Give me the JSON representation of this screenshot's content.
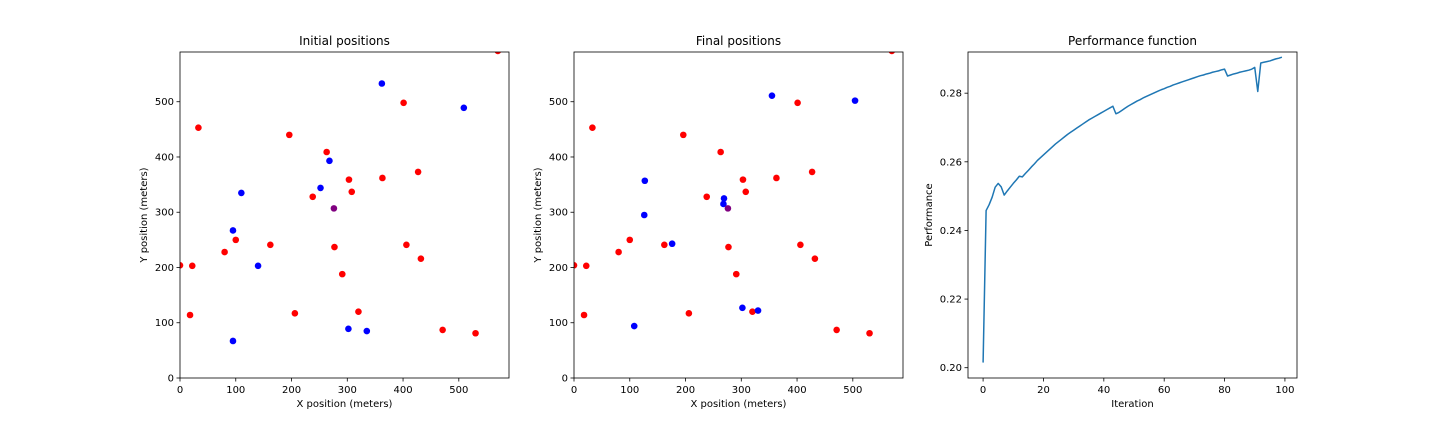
{
  "chart_data": [
    {
      "type": "scatter",
      "title": "Initial positions",
      "xlabel": "X position (meters)",
      "ylabel": "Y position (meters)",
      "xlim": [
        0,
        590
      ],
      "ylim": [
        0,
        590
      ],
      "xticks": [
        0,
        100,
        200,
        300,
        400,
        500
      ],
      "yticks": [
        0,
        100,
        200,
        300,
        400,
        500
      ],
      "grid": false,
      "colors": {
        "red": "#ff0000",
        "blue": "#0000ff",
        "purple": "#800080"
      },
      "series": [
        {
          "color": "red",
          "points": [
            [
              0,
              204
            ],
            [
              22,
              203
            ],
            [
              18,
              114
            ],
            [
              33,
              453
            ],
            [
              80,
              228
            ],
            [
              100,
              250
            ],
            [
              162,
              241
            ],
            [
              196,
              440
            ],
            [
              206,
              117
            ],
            [
              238,
              328
            ],
            [
              263,
              409
            ],
            [
              277,
              237
            ],
            [
              291,
              188
            ],
            [
              303,
              359
            ],
            [
              308,
              337
            ],
            [
              320,
              120
            ],
            [
              363,
              362
            ],
            [
              401,
              498
            ],
            [
              406,
              241
            ],
            [
              427,
              373
            ],
            [
              432,
              216
            ],
            [
              471,
              87
            ],
            [
              530,
              81
            ],
            [
              570,
              592
            ]
          ]
        },
        {
          "color": "blue",
          "points": [
            [
              95,
              267
            ],
            [
              110,
              335
            ],
            [
              95,
              67
            ],
            [
              140,
              203
            ],
            [
              252,
              344
            ],
            [
              268,
              393
            ],
            [
              302,
              89
            ],
            [
              335,
              85
            ],
            [
              362,
              533
            ],
            [
              509,
              489
            ]
          ]
        },
        {
          "color": "purple",
          "points": [
            [
              276,
              307
            ]
          ]
        }
      ]
    },
    {
      "type": "scatter",
      "title": "Final positions",
      "xlabel": "X position (meters)",
      "ylabel": "Y position (meters)",
      "xlim": [
        0,
        590
      ],
      "ylim": [
        0,
        590
      ],
      "xticks": [
        0,
        100,
        200,
        300,
        400,
        500
      ],
      "yticks": [
        0,
        100,
        200,
        300,
        400,
        500
      ],
      "grid": false,
      "colors": {
        "red": "#ff0000",
        "blue": "#0000ff",
        "purple": "#800080"
      },
      "series": [
        {
          "color": "red",
          "points": [
            [
              0,
              204
            ],
            [
              22,
              203
            ],
            [
              18,
              114
            ],
            [
              33,
              453
            ],
            [
              80,
              228
            ],
            [
              100,
              250
            ],
            [
              162,
              241
            ],
            [
              196,
              440
            ],
            [
              206,
              117
            ],
            [
              238,
              328
            ],
            [
              263,
              409
            ],
            [
              277,
              237
            ],
            [
              291,
              188
            ],
            [
              303,
              359
            ],
            [
              308,
              337
            ],
            [
              320,
              120
            ],
            [
              363,
              362
            ],
            [
              401,
              498
            ],
            [
              406,
              241
            ],
            [
              427,
              373
            ],
            [
              432,
              216
            ],
            [
              471,
              87
            ],
            [
              530,
              81
            ],
            [
              570,
              592
            ]
          ]
        },
        {
          "color": "blue",
          "points": [
            [
              127,
              357
            ],
            [
              126,
              295
            ],
            [
              108,
              94
            ],
            [
              176,
              243
            ],
            [
              269,
              325
            ],
            [
              268,
              315
            ],
            [
              302,
              127
            ],
            [
              330,
              122
            ],
            [
              355,
              511
            ],
            [
              504,
              502
            ]
          ]
        },
        {
          "color": "purple",
          "points": [
            [
              276,
              307
            ]
          ]
        }
      ]
    },
    {
      "type": "line",
      "title": "Performance function",
      "xlabel": "Iteration",
      "ylabel": "Performance",
      "xlim": [
        -5,
        104
      ],
      "ylim": [
        0.197,
        0.292
      ],
      "xticks": [
        0,
        20,
        40,
        60,
        80,
        100
      ],
      "yticks": [
        0.2,
        0.22,
        0.24,
        0.26,
        0.28
      ],
      "ytick_labels": [
        "0.20",
        "0.22",
        "0.24",
        "0.26",
        "0.28"
      ],
      "grid": false,
      "line_color": "#1f77b4",
      "x": [
        0,
        1,
        2,
        3,
        4,
        5,
        6,
        7,
        8,
        9,
        10,
        11,
        12,
        13,
        14,
        15,
        16,
        17,
        18,
        19,
        20,
        21,
        22,
        23,
        24,
        25,
        26,
        27,
        28,
        29,
        30,
        31,
        32,
        33,
        34,
        35,
        36,
        37,
        38,
        39,
        40,
        41,
        42,
        43,
        44,
        45,
        46,
        47,
        48,
        49,
        50,
        51,
        52,
        53,
        54,
        55,
        56,
        57,
        58,
        59,
        60,
        61,
        62,
        63,
        64,
        65,
        66,
        67,
        68,
        69,
        70,
        71,
        72,
        73,
        74,
        75,
        76,
        77,
        78,
        79,
        80,
        81,
        82,
        83,
        84,
        85,
        86,
        87,
        88,
        89,
        90,
        91,
        92,
        93,
        94,
        95,
        96,
        97,
        98,
        99
      ],
      "y": [
        0.2015,
        0.2458,
        0.2475,
        0.2497,
        0.2526,
        0.2537,
        0.2527,
        0.2503,
        0.2515,
        0.2526,
        0.2537,
        0.2547,
        0.2558,
        0.2556,
        0.2566,
        0.2575,
        0.2585,
        0.2594,
        0.2604,
        0.2612,
        0.262,
        0.2628,
        0.2636,
        0.2644,
        0.2652,
        0.2659,
        0.2666,
        0.2673,
        0.268,
        0.2686,
        0.2692,
        0.2698,
        0.2704,
        0.271,
        0.2716,
        0.2722,
        0.2727,
        0.2732,
        0.2737,
        0.2742,
        0.2747,
        0.2752,
        0.2757,
        0.2762,
        0.274,
        0.2744,
        0.275,
        0.2756,
        0.2762,
        0.2767,
        0.2772,
        0.2777,
        0.2781,
        0.2786,
        0.279,
        0.2794,
        0.2798,
        0.2802,
        0.2806,
        0.281,
        0.2813,
        0.2817,
        0.282,
        0.2824,
        0.2827,
        0.283,
        0.2833,
        0.2836,
        0.2839,
        0.2842,
        0.2845,
        0.2848,
        0.2851,
        0.2853,
        0.2856,
        0.2858,
        0.2861,
        0.2863,
        0.2865,
        0.2868,
        0.287,
        0.285,
        0.2853,
        0.2856,
        0.2858,
        0.2861,
        0.2863,
        0.2865,
        0.2867,
        0.287,
        0.2875,
        0.2805,
        0.2888,
        0.289,
        0.2892,
        0.2894,
        0.2897,
        0.29,
        0.2902,
        0.2905
      ]
    }
  ]
}
